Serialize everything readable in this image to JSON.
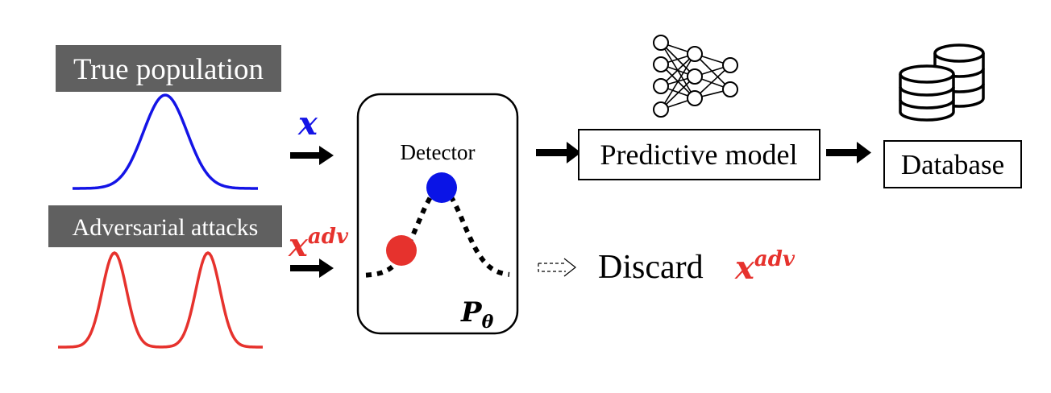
{
  "labels": {
    "true_population": "True population",
    "adversarial_attacks": "Adversarial attacks",
    "x_input": "x",
    "x_adv_input_base": "x",
    "x_adv_input_sup": "adv",
    "detector": "Detector",
    "p_theta_base": "P",
    "p_theta_sub": "θ",
    "predictive_model": "Predictive model",
    "database": "Database",
    "discard": "Discard",
    "discard_x_base": "x",
    "discard_x_sup": "adv"
  },
  "colors": {
    "true_curve": "#1414e6",
    "adv_curve": "#e6322d",
    "label_box": "#606060",
    "blue_point": "#0a14e6",
    "red_point": "#e6322d",
    "arrow": "#000000"
  },
  "icons": {
    "neural_network": "neural-network-icon",
    "database": "database-icon",
    "dashed_arrow": "dashed-arrow-icon"
  }
}
